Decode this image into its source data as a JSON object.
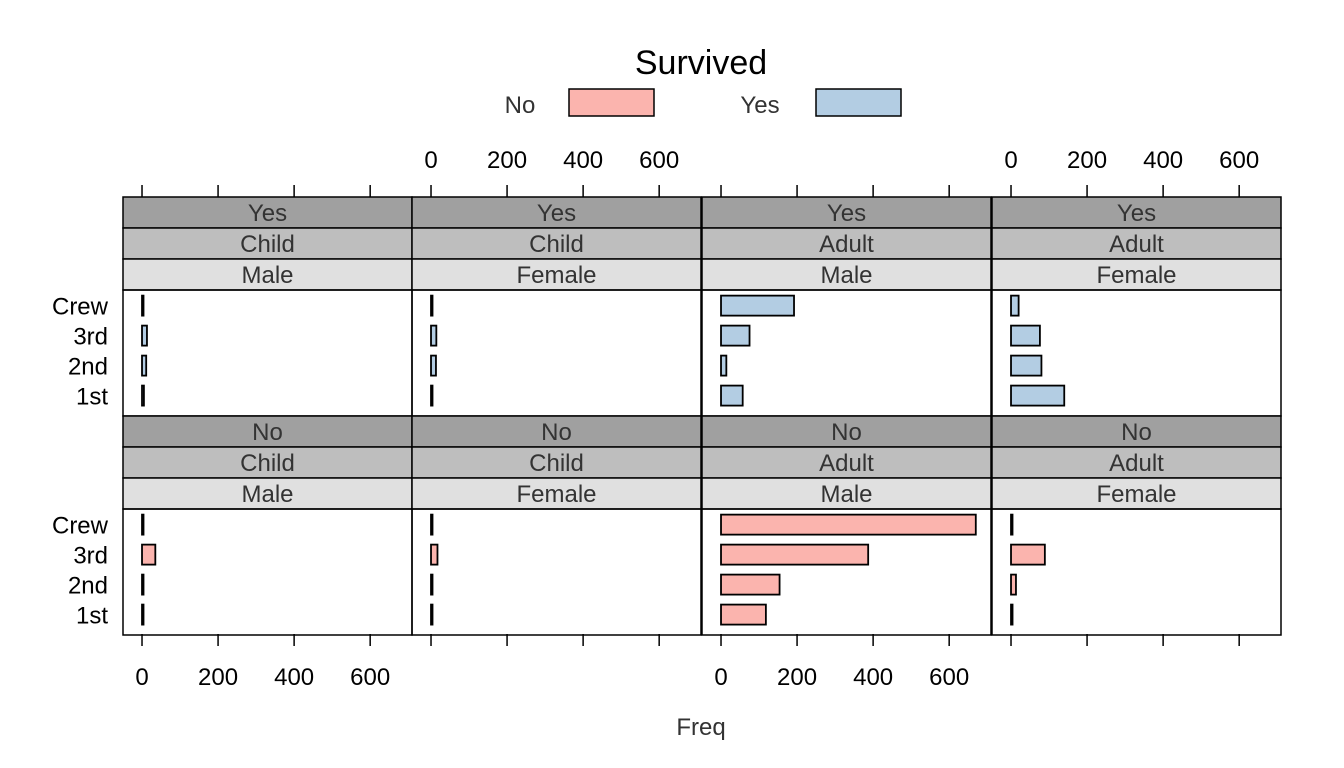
{
  "chart_data": {
    "type": "bar",
    "orientation": "horizontal",
    "legend_title": "Survived",
    "legend": [
      {
        "name": "No",
        "color": "#FBB4AE"
      },
      {
        "name": "Yes",
        "color": "#B3CDE3"
      }
    ],
    "xlabel": "Freq",
    "xlim": [
      -50,
      710
    ],
    "x_ticks": [
      0,
      200,
      400,
      600
    ],
    "categories": [
      "1st",
      "2nd",
      "3rd",
      "Crew"
    ],
    "strip_colors": [
      "#A0A0A0",
      "#BEBEBE",
      "#E0E0E0"
    ],
    "panels": [
      {
        "survived": "Yes",
        "age": "Child",
        "sex": "Male",
        "values": [
          5,
          11,
          13,
          0
        ]
      },
      {
        "survived": "Yes",
        "age": "Child",
        "sex": "Female",
        "values": [
          1,
          13,
          14,
          0
        ]
      },
      {
        "survived": "Yes",
        "age": "Adult",
        "sex": "Male",
        "values": [
          57,
          14,
          75,
          192
        ]
      },
      {
        "survived": "Yes",
        "age": "Adult",
        "sex": "Female",
        "values": [
          140,
          80,
          76,
          20
        ]
      },
      {
        "survived": "No",
        "age": "Child",
        "sex": "Male",
        "values": [
          0,
          0,
          35,
          0
        ]
      },
      {
        "survived": "No",
        "age": "Child",
        "sex": "Female",
        "values": [
          0,
          0,
          17,
          0
        ]
      },
      {
        "survived": "No",
        "age": "Adult",
        "sex": "Male",
        "values": [
          118,
          154,
          387,
          670
        ]
      },
      {
        "survived": "No",
        "age": "Adult",
        "sex": "Female",
        "values": [
          4,
          13,
          89,
          3
        ]
      }
    ]
  }
}
